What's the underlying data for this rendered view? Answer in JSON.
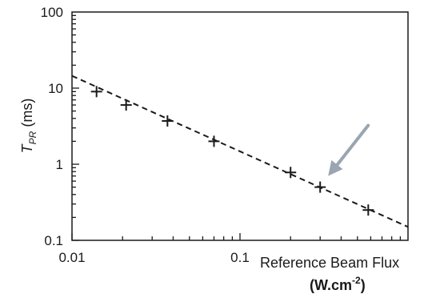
{
  "chart_data": {
    "type": "scatter",
    "xscale": "log",
    "yscale": "log",
    "xlim": [
      0.01,
      1.0
    ],
    "ylim": [
      0.1,
      100
    ],
    "x_ticks": [
      "0.01",
      "0.1"
    ],
    "y_ticks": [
      "100",
      "10",
      "1",
      "0.1"
    ],
    "xlabel": "Reference Beam Flux",
    "xlabel_unit": {
      "prefix": "(W.cm",
      "exponent": "-2",
      "suffix": ")"
    },
    "ylabel": {
      "main": "T",
      "sub": "PR",
      "unit": " (ms)"
    },
    "grid": false,
    "series": [
      {
        "marker": "plus",
        "x": [
          0.014,
          0.021,
          0.037,
          0.07,
          0.2,
          0.3,
          0.58
        ],
        "y": [
          9.0,
          6.0,
          3.7,
          2.0,
          0.78,
          0.5,
          0.25
        ]
      }
    ],
    "fit_line": {
      "style": "dashed",
      "x": [
        0.01,
        1.0
      ],
      "y": [
        14.5,
        0.15
      ]
    },
    "annotation": {
      "type": "arrow",
      "color": "#9aa5b1",
      "points_to": {
        "x": 0.3,
        "y": 0.5
      }
    }
  }
}
